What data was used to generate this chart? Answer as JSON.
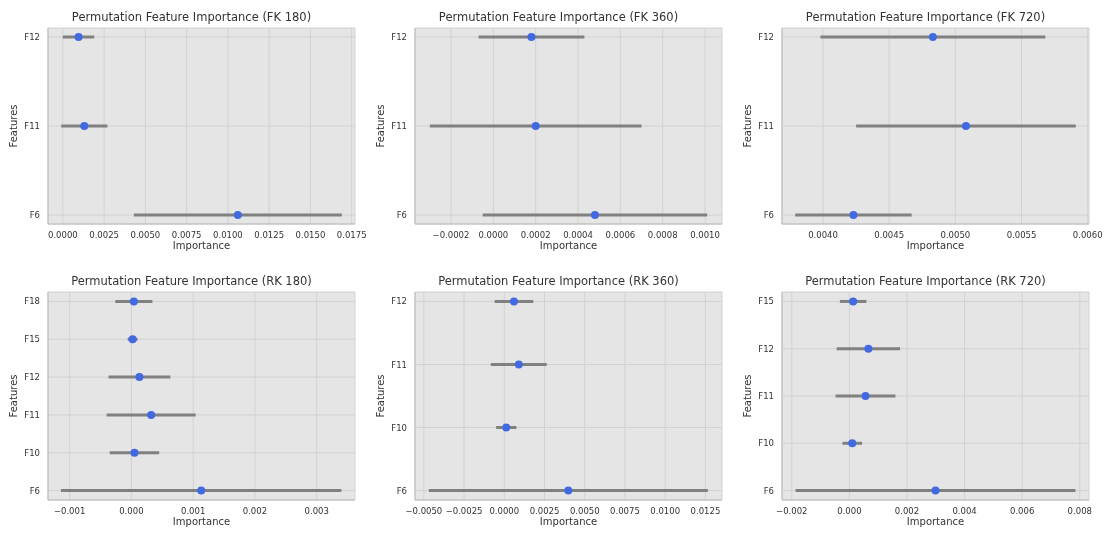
{
  "chart_data": [
    {
      "type": "scatter",
      "orientation": "horizontal",
      "title": "Permutation Feature Importance (FK 180)",
      "xlabel": "Importance",
      "ylabel": "Features",
      "categories": [
        "F12",
        "F11",
        "F6"
      ],
      "grid": true,
      "marker": "circle",
      "xlim": [
        -0.0009,
        0.0177
      ],
      "xticks": [
        {
          "value": 0,
          "label": "0.0000"
        },
        {
          "value": 0.0025,
          "label": "0.0025"
        },
        {
          "value": 0.005,
          "label": "0.0050"
        },
        {
          "value": 0.0075,
          "label": "0.0075"
        },
        {
          "value": 0.01,
          "label": "0.0100"
        },
        {
          "value": 0.0125,
          "label": "0.0125"
        },
        {
          "value": 0.015,
          "label": "0.0150"
        },
        {
          "value": 0.0175,
          "label": "0.0175"
        }
      ],
      "color": "#4169e1",
      "values": [
        0.00095,
        0.0013,
        0.0106
      ],
      "errors": [
        0.00095,
        0.0014,
        0.0063
      ]
    },
    {
      "type": "scatter",
      "orientation": "horizontal",
      "title": "Permutation Feature Importance (FK 360)",
      "xlabel": "Importance",
      "ylabel": "Features",
      "categories": [
        "F12",
        "F11",
        "F6"
      ],
      "grid": true,
      "marker": "circle",
      "xlim": [
        -0.00037,
        0.00108
      ],
      "xticks": [
        {
          "value": -0.0002,
          "label": "−0.0002"
        },
        {
          "value": 0,
          "label": "0.0000"
        },
        {
          "value": 0.0002,
          "label": "0.0002"
        },
        {
          "value": 0.0004,
          "label": "0.0004"
        },
        {
          "value": 0.0006,
          "label": "0.0006"
        },
        {
          "value": 0.0008,
          "label": "0.0008"
        },
        {
          "value": 0.001,
          "label": "0.0010"
        }
      ],
      "color": "#4169e1",
      "values": [
        0.00018,
        0.0002,
        0.00048
      ],
      "errors": [
        0.00025,
        0.0005,
        0.00053
      ]
    },
    {
      "type": "scatter",
      "orientation": "horizontal",
      "title": "Permutation Feature Importance (FK 720)",
      "xlabel": "Importance",
      "ylabel": "Features",
      "categories": [
        "F12",
        "F11",
        "F6"
      ],
      "grid": true,
      "marker": "circle",
      "xlim": [
        0.00369,
        0.00601
      ],
      "xticks": [
        {
          "value": 0.004,
          "label": "0.0040"
        },
        {
          "value": 0.0045,
          "label": "0.0045"
        },
        {
          "value": 0.005,
          "label": "0.0050"
        },
        {
          "value": 0.0055,
          "label": "0.0055"
        },
        {
          "value": 0.006,
          "label": "0.0060"
        }
      ],
      "color": "#4169e1",
      "values": [
        0.00483,
        0.00508,
        0.00423
      ],
      "errors": [
        0.00085,
        0.00083,
        0.00044
      ]
    },
    {
      "type": "scatter",
      "orientation": "horizontal",
      "title": "Permutation Feature Importance (RK 180)",
      "xlabel": "Importance",
      "ylabel": "Features",
      "categories": [
        "F18",
        "F15",
        "F12",
        "F11",
        "F10",
        "F6"
      ],
      "grid": true,
      "marker": "circle",
      "xlim": [
        -0.00135,
        0.00362
      ],
      "xticks": [
        {
          "value": -0.001,
          "label": "−0.001"
        },
        {
          "value": 0,
          "label": "0.000"
        },
        {
          "value": 0.001,
          "label": "0.001"
        },
        {
          "value": 0.002,
          "label": "0.002"
        },
        {
          "value": 0.003,
          "label": "0.003"
        }
      ],
      "color": "#4169e1",
      "values": [
        4e-05,
        2e-05,
        0.00013,
        0.00032,
        5e-05,
        0.00113
      ],
      "errors": [
        0.0003,
        8e-05,
        0.0005,
        0.00072,
        0.0004,
        0.00227
      ]
    },
    {
      "type": "scatter",
      "orientation": "horizontal",
      "title": "Permutation Feature Importance (RK 360)",
      "xlabel": "Importance",
      "ylabel": "Features",
      "categories": [
        "F12",
        "F11",
        "F10",
        "F6"
      ],
      "grid": true,
      "marker": "circle",
      "xlim": [
        -0.00555,
        0.01353
      ],
      "xticks": [
        {
          "value": -0.005,
          "label": "−0.0050"
        },
        {
          "value": -0.0025,
          "label": "−0.0025"
        },
        {
          "value": 0,
          "label": "0.0000"
        },
        {
          "value": 0.0025,
          "label": "0.0025"
        },
        {
          "value": 0.005,
          "label": "0.0050"
        },
        {
          "value": 0.0075,
          "label": "0.0075"
        },
        {
          "value": 0.01,
          "label": "0.0100"
        },
        {
          "value": 0.0125,
          "label": "0.0125"
        }
      ],
      "color": "#4169e1",
      "values": [
        0.0006,
        0.0009,
        0.00012,
        0.00398
      ],
      "errors": [
        0.0012,
        0.00174,
        0.00063,
        0.00867
      ]
    },
    {
      "type": "scatter",
      "orientation": "horizontal",
      "title": "Permutation Feature Importance (RK 720)",
      "xlabel": "Importance",
      "ylabel": "Features",
      "categories": [
        "F15",
        "F12",
        "F11",
        "F10",
        "F6"
      ],
      "grid": true,
      "marker": "circle",
      "xlim": [
        -0.00234,
        0.00832
      ],
      "xticks": [
        {
          "value": -0.002,
          "label": "−0.002"
        },
        {
          "value": 0,
          "label": "0.000"
        },
        {
          "value": 0.002,
          "label": "0.002"
        },
        {
          "value": 0.004,
          "label": "0.004"
        },
        {
          "value": 0.006,
          "label": "0.006"
        },
        {
          "value": 0.008,
          "label": "0.008"
        }
      ],
      "color": "#4169e1",
      "values": [
        0.00013,
        0.00066,
        0.00056,
        0.0001,
        0.00299
      ],
      "errors": [
        0.00046,
        0.0011,
        0.00104,
        0.00034,
        0.00486
      ]
    }
  ]
}
